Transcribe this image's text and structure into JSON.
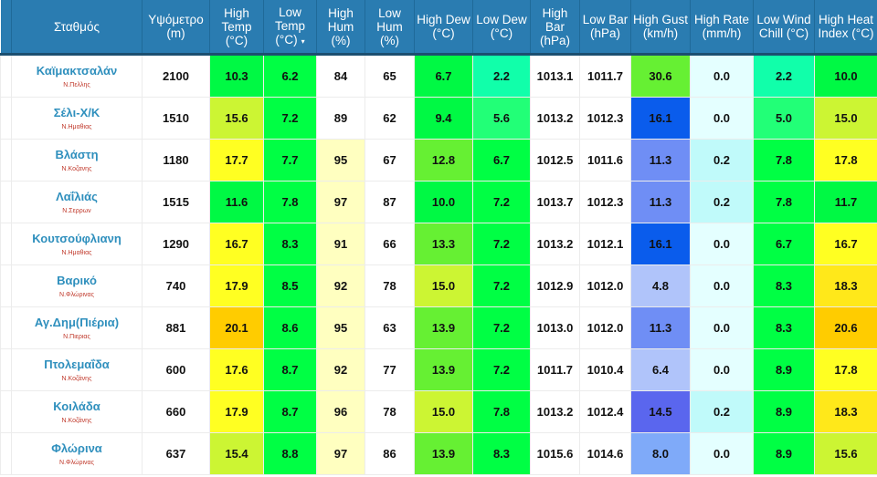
{
  "headers": [
    "",
    "Σταθμός",
    "Υψόμετρο (m)",
    "High Temp (°C)",
    "Low Temp (°C)",
    "High Hum (%)",
    "Low Hum (%)",
    "High Dew (°C)",
    "Low Dew (°C)",
    "High Bar (hPa)",
    "Low Bar (hPa)",
    "High Gust (km/h)",
    "High Rate (mm/h)",
    "Low Wind Chill (°C)",
    "High Heat Index (°C)"
  ],
  "sort_column_icon": "caret-down-icon",
  "sort_caret": "▾",
  "header_color": "#2a7cb1",
  "rows": [
    {
      "name": "Καϊμακτσαλάν",
      "region": "Ν.Πελλης",
      "values": [
        "2100",
        "10.3",
        "6.2",
        "84",
        "65",
        "6.7",
        "2.2",
        "1013.1",
        "1011.7",
        "30.6",
        "0.0",
        "2.2",
        "10.0"
      ],
      "colors": [
        "#fff",
        "#00f944",
        "#00ff44",
        "#fff",
        "#fff",
        "#00f944",
        "#11ffaa",
        "#fff",
        "#fff",
        "#66f033",
        "#e4ffff",
        "#11ffaa",
        "#00f944"
      ]
    },
    {
      "name": "Σέλι-Χ/Κ",
      "region": "Ν.Ημαθιας",
      "values": [
        "1510",
        "15.6",
        "7.2",
        "89",
        "62",
        "9.4",
        "5.6",
        "1013.2",
        "1012.3",
        "16.1",
        "0.0",
        "5.0",
        "15.0"
      ],
      "colors": [
        "#fff",
        "#ccf533",
        "#00ff44",
        "#fff",
        "#fff",
        "#00f944",
        "#22ff77",
        "#fff",
        "#fff",
        "#0a5cec",
        "#e4ffff",
        "#22ff77",
        "#ccf533"
      ]
    },
    {
      "name": "Βλάστη",
      "region": "Ν.Κοζανης",
      "values": [
        "1180",
        "17.7",
        "7.7",
        "95",
        "67",
        "12.8",
        "6.7",
        "1012.5",
        "1011.6",
        "11.3",
        "0.2",
        "7.8",
        "17.8"
      ],
      "colors": [
        "#fff",
        "#ffff22",
        "#00ff44",
        "#ffffc0",
        "#fff",
        "#66f033",
        "#00ff44",
        "#fff",
        "#fff",
        "#6f8ef5",
        "#c0fafa",
        "#00ff44",
        "#ffff22"
      ]
    },
    {
      "name": "Λαΐλιάς",
      "region": "Ν.Σερρων",
      "values": [
        "1515",
        "11.6",
        "7.8",
        "97",
        "87",
        "10.0",
        "7.2",
        "1013.7",
        "1012.3",
        "11.3",
        "0.2",
        "7.8",
        "11.7"
      ],
      "colors": [
        "#fff",
        "#00f944",
        "#00ff44",
        "#ffffc0",
        "#fff",
        "#00f944",
        "#00ff44",
        "#fff",
        "#fff",
        "#6f8ef5",
        "#c0fafa",
        "#00ff44",
        "#00f944"
      ]
    },
    {
      "name": "Κουτσούφλιανη",
      "region": "Ν.Ημαθιας",
      "values": [
        "1290",
        "16.7",
        "8.3",
        "91",
        "66",
        "13.3",
        "7.2",
        "1013.2",
        "1012.1",
        "16.1",
        "0.0",
        "6.7",
        "16.7"
      ],
      "colors": [
        "#fff",
        "#ffff22",
        "#00ff44",
        "#ffffc0",
        "#fff",
        "#66f033",
        "#00ff44",
        "#fff",
        "#fff",
        "#0a5cec",
        "#e4ffff",
        "#00ff44",
        "#ffff22"
      ]
    },
    {
      "name": "Βαρικό",
      "region": "Ν.Φλώρινας",
      "values": [
        "740",
        "17.9",
        "8.5",
        "92",
        "78",
        "15.0",
        "7.2",
        "1012.9",
        "1012.0",
        "4.8",
        "0.0",
        "8.3",
        "18.3"
      ],
      "colors": [
        "#fff",
        "#ffff22",
        "#00ff44",
        "#ffffc0",
        "#fff",
        "#ccf533",
        "#00ff44",
        "#fff",
        "#fff",
        "#b0c4fa",
        "#e4ffff",
        "#00ff44",
        "#ffe81a"
      ]
    },
    {
      "name": "Αγ.Δημ(Πιέρια)",
      "region": "Ν.Πιεριας",
      "values": [
        "881",
        "20.1",
        "8.6",
        "95",
        "63",
        "13.9",
        "7.2",
        "1013.0",
        "1012.0",
        "11.3",
        "0.0",
        "8.3",
        "20.6"
      ],
      "colors": [
        "#fff",
        "#ffcc00",
        "#00ff44",
        "#ffffc0",
        "#fff",
        "#66f033",
        "#00ff44",
        "#fff",
        "#fff",
        "#6f8ef5",
        "#e4ffff",
        "#00ff44",
        "#ffcc00"
      ]
    },
    {
      "name": "Πτολεμαΐδα",
      "region": "Ν.Κοζάνης",
      "values": [
        "600",
        "17.6",
        "8.7",
        "92",
        "77",
        "13.9",
        "7.2",
        "1011.7",
        "1010.4",
        "6.4",
        "0.0",
        "8.9",
        "17.8"
      ],
      "colors": [
        "#fff",
        "#ffff22",
        "#00ff44",
        "#ffffc0",
        "#fff",
        "#66f033",
        "#00ff44",
        "#fff",
        "#fff",
        "#b0c4fa",
        "#e4ffff",
        "#00ff44",
        "#ffff22"
      ]
    },
    {
      "name": "Κοιλάδα",
      "region": "Ν.Κοζάνης",
      "values": [
        "660",
        "17.9",
        "8.7",
        "96",
        "78",
        "15.0",
        "7.8",
        "1013.2",
        "1012.4",
        "14.5",
        "0.2",
        "8.9",
        "18.3"
      ],
      "colors": [
        "#fff",
        "#ffff22",
        "#00ff44",
        "#ffffc0",
        "#fff",
        "#ccf533",
        "#00ff44",
        "#fff",
        "#fff",
        "#5a66ee",
        "#c0fafa",
        "#00ff44",
        "#ffe81a"
      ]
    },
    {
      "name": "Φλώρινα",
      "region": "Ν.Φλώρινας",
      "values": [
        "637",
        "15.4",
        "8.8",
        "97",
        "86",
        "13.9",
        "8.3",
        "1015.6",
        "1014.6",
        "8.0",
        "0.0",
        "8.9",
        "15.6"
      ],
      "colors": [
        "#fff",
        "#ccf533",
        "#00ff44",
        "#ffffc0",
        "#fff",
        "#66f033",
        "#00ff44",
        "#fff",
        "#fff",
        "#7faaf9",
        "#e4ffff",
        "#00ff44",
        "#ccf533"
      ]
    }
  ]
}
